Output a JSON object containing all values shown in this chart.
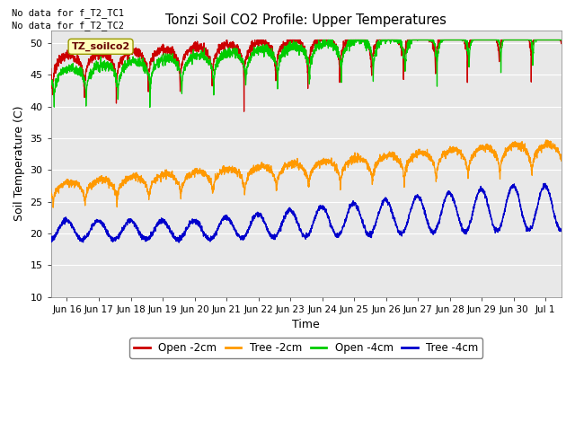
{
  "title": "Tonzi Soil CO2 Profile: Upper Temperatures",
  "xlabel": "Time",
  "ylabel": "Soil Temperature (C)",
  "ylim": [
    10,
    52
  ],
  "yticks": [
    10,
    15,
    20,
    25,
    30,
    35,
    40,
    45,
    50
  ],
  "background_color": "#e8e8e8",
  "legend_labels": [
    "Open -2cm",
    "Tree -2cm",
    "Open -4cm",
    "Tree -4cm"
  ],
  "legend_colors": [
    "#cc0000",
    "#ff9900",
    "#00cc00",
    "#0000cc"
  ],
  "no_data_text1": "No data for f_T2_TC1",
  "no_data_text2": "No data for f_T2_TC2",
  "annotation_text": "TZ_soilco2",
  "date_start": 15.5,
  "date_end": 31.5,
  "xtick_labels": [
    "Jun 16",
    "Jun 17",
    "Jun 18",
    "Jun 19",
    "Jun 20",
    "Jun 21",
    "Jun 22",
    "Jun 23",
    "Jun 24",
    "Jun 25",
    "Jun 26",
    "Jun 27",
    "Jun 28",
    "Jun 29",
    "Jun 30",
    "Jul 1"
  ],
  "xtick_positions": [
    16,
    17,
    18,
    19,
    20,
    21,
    22,
    23,
    24,
    25,
    26,
    27,
    28,
    29,
    30,
    31
  ]
}
